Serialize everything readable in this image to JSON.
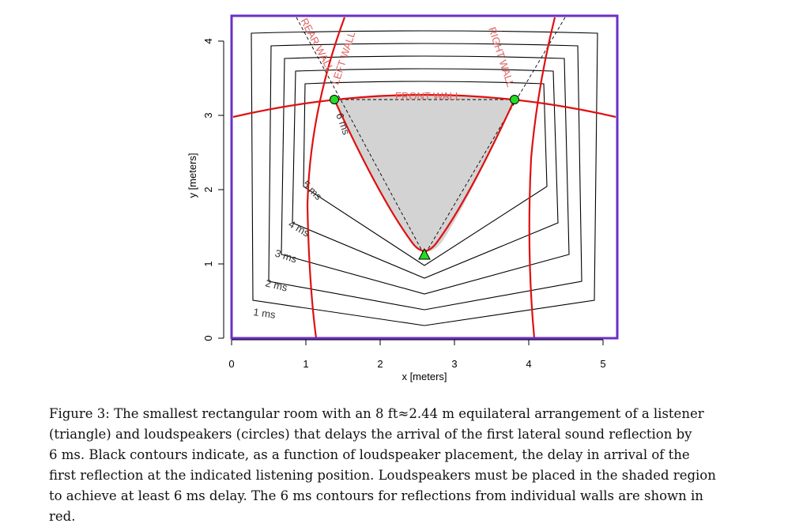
{
  "figure": {
    "xlabel": "x [meters]",
    "ylabel": "y [meters]",
    "x_ticks": [
      "0",
      "1",
      "2",
      "3",
      "4",
      "5"
    ],
    "y_ticks": [
      "0",
      "1",
      "2",
      "3",
      "4"
    ],
    "contour_labels": [
      "1 ms",
      "2 ms",
      "3 ms",
      "4 ms",
      "5 ms",
      "6 ms"
    ],
    "wall_labels": {
      "rear": "REAR WALL",
      "left": "LEFT WALL",
      "right": "RIGHT WALL",
      "front": "FRONT WALL"
    },
    "colors": {
      "room_border": "#6a2fc7",
      "contour": "#000000",
      "wall_contour": "#e01010",
      "shaded_region": "#d3d3d3",
      "markers": "#22dd22"
    }
  },
  "chart_data": {
    "type": "contour",
    "xlabel": "x [meters]",
    "ylabel": "y [meters]",
    "xlim": [
      0,
      5.2
    ],
    "ylim": [
      0,
      4.3
    ],
    "room": {
      "x": [
        0,
        5.2
      ],
      "y": [
        0,
        4.3
      ]
    },
    "listener": {
      "x": 2.6,
      "y": 1.1,
      "marker": "triangle"
    },
    "loudspeakers": [
      {
        "x": 1.38,
        "y": 3.22,
        "marker": "circle"
      },
      {
        "x": 3.82,
        "y": 3.22,
        "marker": "circle"
      }
    ],
    "contour_levels_ms": [
      1,
      2,
      3,
      4,
      5,
      6
    ],
    "wall_contours_6ms": [
      "REAR WALL",
      "LEFT WALL",
      "RIGHT WALL",
      "FRONT WALL"
    ]
  },
  "caption": {
    "line1": "Figure 3: The smallest rectangular room with an 8 ft≈2.44 m equilateral arrangement of a listener",
    "line2": "(triangle) and loudspeakers (circles) that delays the arrival of the first lateral sound reflection by",
    "line3": "6 ms. Black contours indicate, as a function of loudspeaker placement, the delay in arrival of the",
    "line4": "first reflection at the indicated listening position. Loudspeakers must be placed in the shaded region",
    "line5": "to achieve at least 6 ms delay. The 6 ms contours for reflections from individual walls are shown in",
    "line6": "red."
  }
}
